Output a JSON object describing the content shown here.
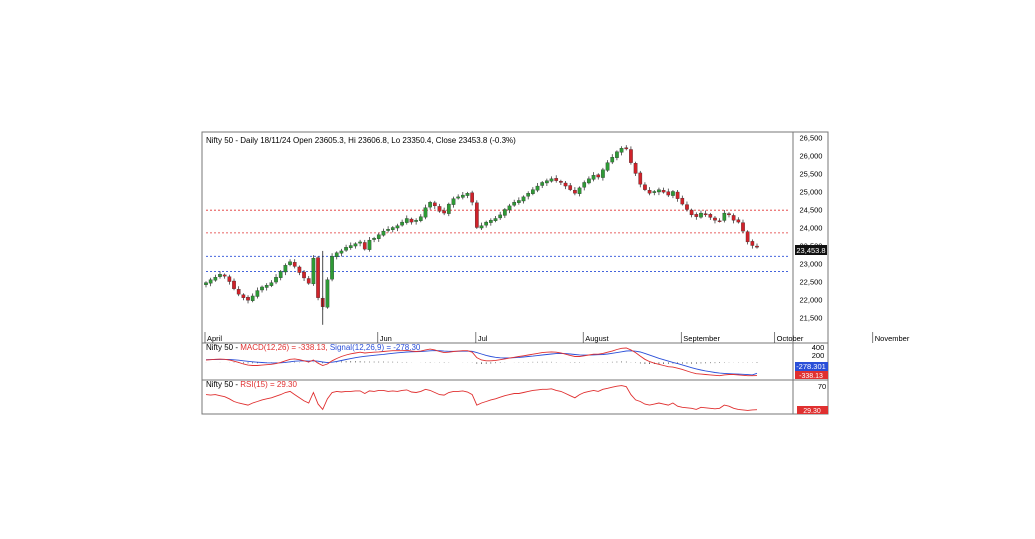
{
  "colors": {
    "up_candle": "#2e9a36",
    "down_candle": "#d0222a",
    "macd_line": "#e03030",
    "signal_line": "#2a4fd8",
    "rsi_line": "#e03030",
    "resistance_line": "#e03030",
    "support_line": "#2a4fd8",
    "histogram": "#000000",
    "frame": "#333333"
  },
  "price_panel": {
    "header": "Nifty 50 - Daily 18/11/24 Open 23605.3, Hi 23606.8, Lo 23350.4, Close 23453.8 (-0.3%)",
    "last_price_tag": "23,453.8",
    "y_ticks": [
      "26,500",
      "26,000",
      "25,500",
      "25,000",
      "24,500",
      "24,000",
      "23,500",
      "23,000",
      "22,500",
      "22,000",
      "21,500"
    ],
    "months": [
      "April",
      "Jun",
      "Jul",
      "August",
      "September",
      "October",
      "November"
    ]
  },
  "macd_panel": {
    "prefix": "Nifty 50 - ",
    "macd_label": "MACD(12,26) = -338.13,",
    "signal_label": "Signal(12,26,9) = -278.30",
    "y_ticks": [
      "400",
      "200"
    ],
    "signal_tag": "-278.301",
    "macd_tag": "-338.13"
  },
  "rsi_panel": {
    "prefix": "Nifty 50 - ",
    "rsi_label": "RSI(15) = 29.30",
    "y_ticks": [
      "70"
    ],
    "rsi_tag": "29.30"
  },
  "chart_data": {
    "type": "candlestick",
    "title": "Nifty 50 - Daily 18/11/24",
    "ylim": [
      21100,
      26650
    ],
    "horizontal_levels": {
      "resistance": [
        24480,
        23850
      ],
      "support": [
        23200,
        22780
      ]
    },
    "month_starts": [
      {
        "label": "April",
        "index": 0
      },
      {
        "label": "Jun",
        "index": 37
      },
      {
        "label": "Jul",
        "index": 58
      },
      {
        "label": "August",
        "index": 81
      },
      {
        "label": "September",
        "index": 102
      },
      {
        "label": "October",
        "index": 122
      },
      {
        "label": "November",
        "index": 143
      }
    ],
    "close": [
      22470,
      22550,
      22620,
      22700,
      22650,
      22500,
      22300,
      22150,
      22050,
      21980,
      22100,
      22250,
      22350,
      22400,
      22470,
      22620,
      22780,
      22950,
      23050,
      22920,
      22750,
      22600,
      22450,
      23150,
      22050,
      21800,
      22550,
      23200,
      23300,
      23350,
      23450,
      23500,
      23550,
      23600,
      23400,
      23650,
      23700,
      23800,
      23900,
      23950,
      24000,
      24050,
      24150,
      24250,
      24150,
      24200,
      24300,
      24550,
      24700,
      24600,
      24450,
      24400,
      24650,
      24800,
      24850,
      24900,
      24950,
      24700,
      24000,
      24050,
      24150,
      24200,
      24250,
      24350,
      24500,
      24600,
      24700,
      24750,
      24850,
      24950,
      25050,
      25150,
      25250,
      25300,
      25350,
      25300,
      25250,
      25150,
      25050,
      24950,
      25100,
      25250,
      25350,
      25450,
      25400,
      25600,
      25800,
      25950,
      26100,
      26200,
      26180,
      25800,
      25500,
      25200,
      25050,
      24950,
      25000,
      25050,
      24980,
      24900,
      25000,
      24800,
      24650,
      24500,
      24350,
      24300,
      24400,
      24350,
      24280,
      24200,
      24180,
      24400,
      24350,
      24200,
      24150,
      23900,
      23600,
      23500,
      23454
    ],
    "rsi": [
      58,
      57,
      58,
      56,
      54,
      50,
      45,
      42,
      40,
      38,
      42,
      45,
      48,
      50,
      52,
      55,
      58,
      62,
      64,
      58,
      52,
      46,
      42,
      62,
      40,
      30,
      50,
      62,
      64,
      63,
      64,
      64,
      65,
      65,
      60,
      65,
      64,
      66,
      66,
      64,
      65,
      64,
      66,
      67,
      63,
      62,
      64,
      68,
      66,
      62,
      58,
      57,
      62,
      64,
      64,
      65,
      63,
      58,
      38,
      42,
      45,
      48,
      50,
      53,
      56,
      58,
      60,
      60,
      62,
      64,
      66,
      67,
      68,
      68,
      69,
      66,
      64,
      60,
      56,
      52,
      58,
      62,
      64,
      66,
      64,
      68,
      70,
      72,
      74,
      75,
      73,
      58,
      48,
      45,
      40,
      38,
      40,
      42,
      40,
      38,
      42,
      36,
      34,
      33,
      32,
      30,
      34,
      33,
      32,
      31,
      32,
      38,
      36,
      32,
      30,
      29,
      28,
      29,
      29.3
    ],
    "macd": [
      60,
      70,
      80,
      85,
      80,
      60,
      30,
      0,
      -40,
      -70,
      -80,
      -80,
      -70,
      -60,
      -50,
      -30,
      0,
      40,
      80,
      90,
      70,
      40,
      10,
      60,
      -20,
      -80,
      -40,
      40,
      100,
      150,
      190,
      220,
      240,
      260,
      240,
      250,
      260,
      270,
      280,
      290,
      300,
      300,
      300,
      310,
      290,
      280,
      290,
      320,
      340,
      320,
      280,
      250,
      260,
      280,
      290,
      300,
      300,
      260,
      120,
      60,
      40,
      40,
      50,
      70,
      90,
      110,
      130,
      150,
      170,
      190,
      210,
      230,
      250,
      260,
      270,
      260,
      240,
      210,
      180,
      150,
      150,
      170,
      190,
      210,
      210,
      230,
      260,
      290,
      330,
      360,
      370,
      320,
      250,
      160,
      80,
      20,
      -20,
      -50,
      -80,
      -110,
      -120,
      -150,
      -180,
      -220,
      -260,
      -290,
      -300,
      -310,
      -320,
      -330,
      -340,
      -320,
      -310,
      -310,
      -320,
      -330,
      -340,
      -340,
      -338.13
    ],
    "signal": [
      70,
      72,
      74,
      76,
      77,
      74,
      66,
      55,
      42,
      27,
      14,
      4,
      -4,
      -10,
      -13,
      -14,
      -10,
      0,
      16,
      30,
      39,
      40,
      34,
      40,
      30,
      10,
      -6,
      5,
      24,
      48,
      73,
      98,
      119,
      140,
      155,
      168,
      182,
      194,
      206,
      220,
      232,
      245,
      255,
      266,
      272,
      275,
      279,
      287,
      298,
      302,
      299,
      290,
      284,
      284,
      285,
      288,
      290,
      285,
      250,
      215,
      180,
      150,
      130,
      118,
      113,
      115,
      120,
      128,
      138,
      150,
      162,
      175,
      190,
      202,
      216,
      225,
      228,
      224,
      215,
      202,
      192,
      187,
      187,
      192,
      196,
      203,
      215,
      232,
      250,
      272,
      291,
      297,
      288,
      265,
      230,
      188,
      145,
      105,
      68,
      32,
      0,
      -32,
      -65,
      -100,
      -136,
      -167,
      -195,
      -218,
      -239,
      -258,
      -274,
      -283,
      -290,
      -294,
      -300,
      -306,
      -313,
      -320,
      -278.3
    ]
  }
}
